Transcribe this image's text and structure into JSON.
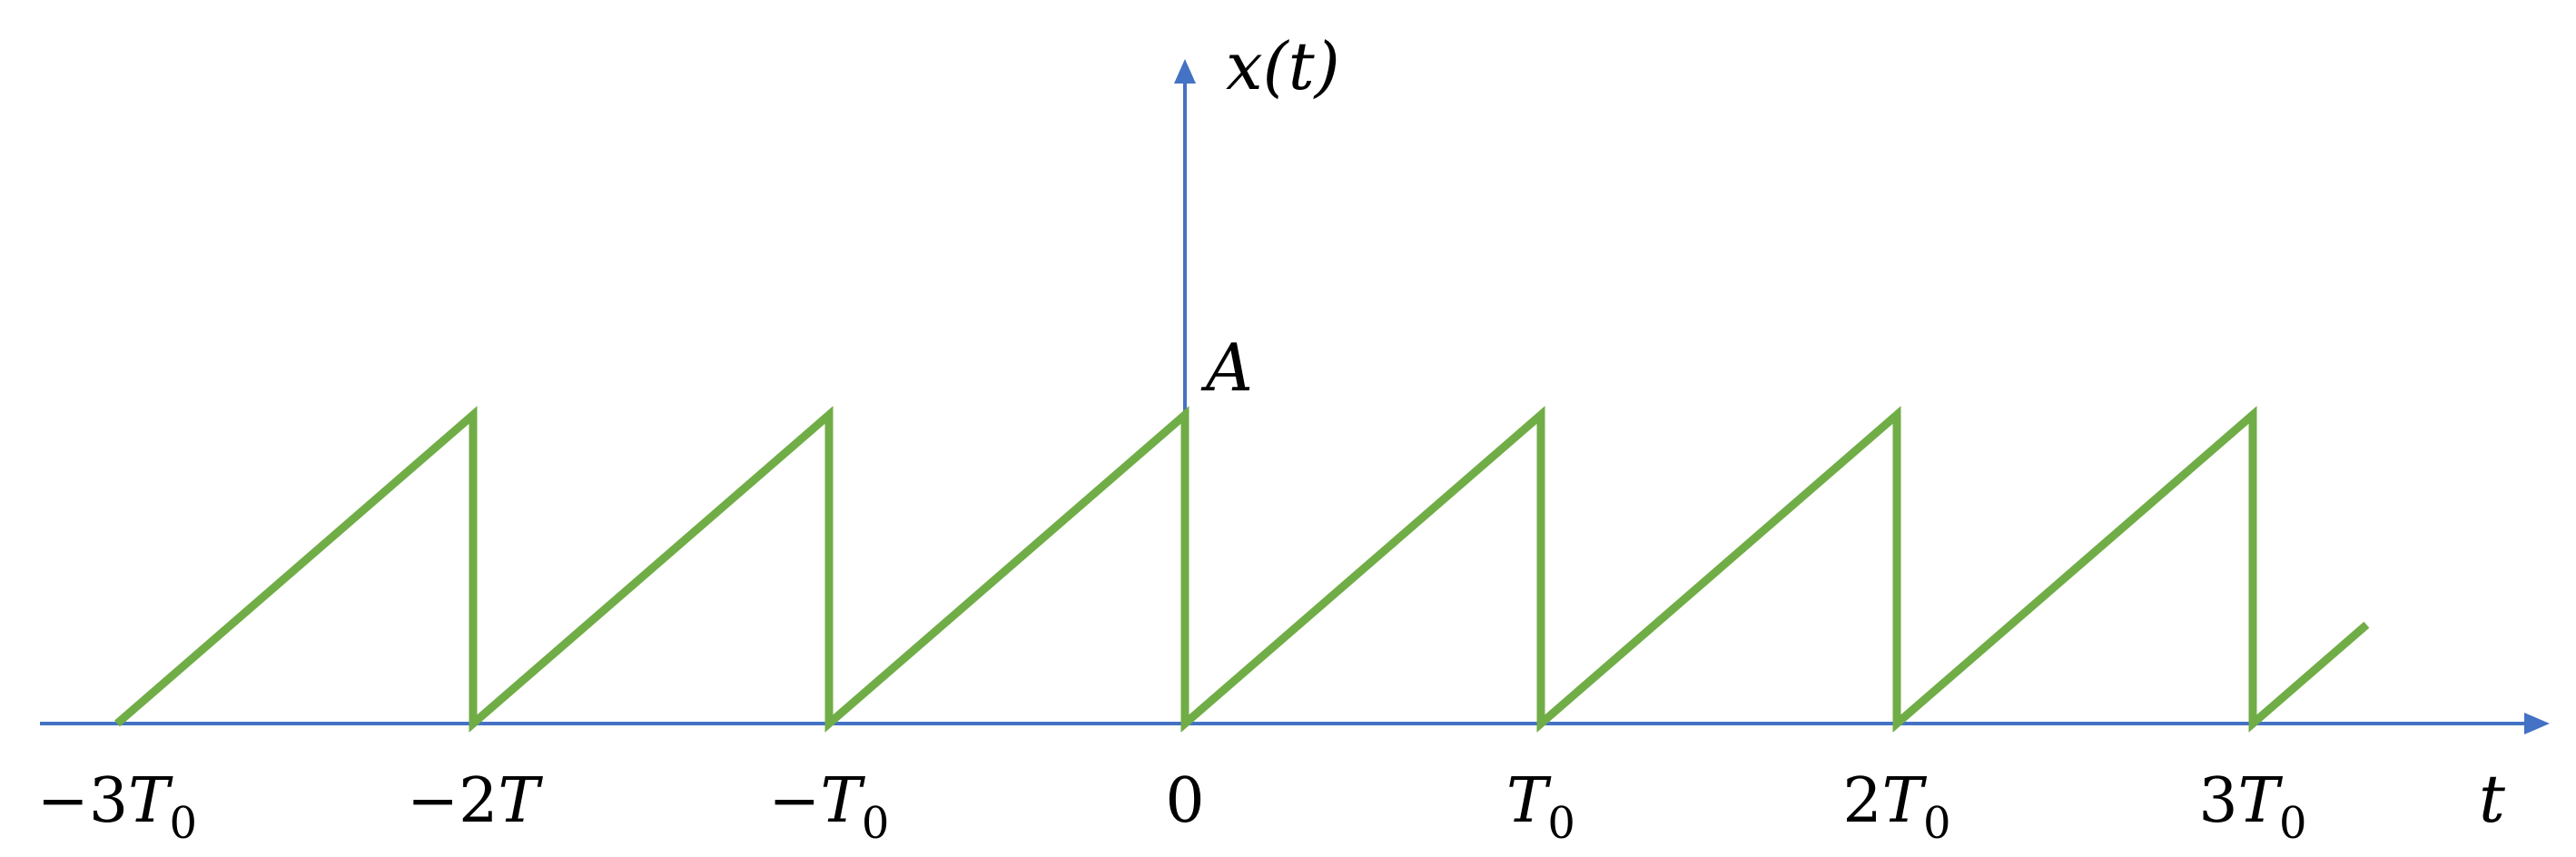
{
  "chart_data": {
    "type": "line",
    "title": "",
    "ylabel": "x(t)",
    "xlabel": "t",
    "amplitude_label": "A",
    "xlim": [
      -3.3,
      3.8
    ],
    "ylim": [
      0,
      1
    ],
    "grid": false,
    "axis_color": "#4472c4",
    "series_color": "#70ad47",
    "x_ticks": [
      {
        "value": -3,
        "label": "−3",
        "main": "T",
        "sub": "0"
      },
      {
        "value": -2,
        "label": "−2",
        "main": "T",
        "sub": ""
      },
      {
        "value": -1,
        "label": "−",
        "main": "T",
        "sub": "0"
      },
      {
        "value": 0,
        "label": "0",
        "main": "",
        "sub": ""
      },
      {
        "value": 1,
        "label": "",
        "main": "T",
        "sub": "0"
      },
      {
        "value": 2,
        "label": "2",
        "main": "T",
        "sub": "0"
      },
      {
        "value": 3,
        "label": "3",
        "main": "T",
        "sub": "0"
      }
    ],
    "series": [
      {
        "x": [
          -3,
          -2,
          -2,
          -1,
          -1,
          0,
          0,
          1,
          1,
          2,
          2,
          3,
          3,
          3.32
        ],
        "y": [
          0,
          1,
          0,
          1,
          0,
          1,
          0,
          1,
          0,
          1,
          0,
          1,
          0,
          0.32
        ]
      }
    ]
  }
}
